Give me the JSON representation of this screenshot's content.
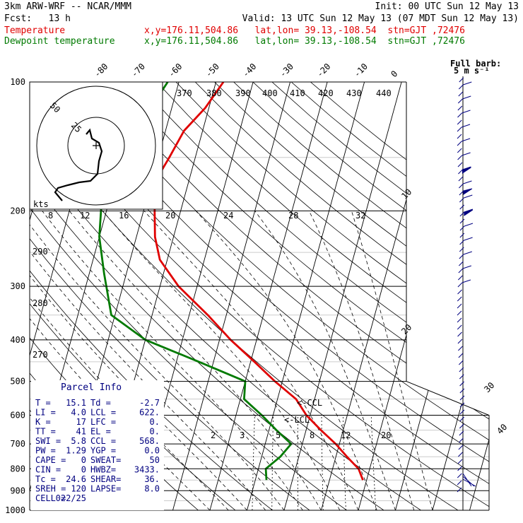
{
  "header": {
    "line1_left": "3km ARW-WRF -- NCAR/MMM",
    "line1_right": "Init: 00 UTC Sun 12 May 13",
    "line2_left": "Fcst:   13 h",
    "line2_right": "Valid: 13 UTC Sun 12 May 13 (07 MDT Sun 12 May 13)",
    "line3_label": "Temperature",
    "line3_info": "x,y=176.11,504.86   lat,lon= 39.13,-108.54  stn=GJT ,72476",
    "line4_label": "Dewpoint temperature",
    "line4_info": "x,y=176.11,504.86   lat,lon= 39.13,-108.54  stn=GJT ,72476"
  },
  "colors": {
    "temperature": "#e00000",
    "dewpoint": "#007a00",
    "wind": "#000080",
    "grid": "#000000"
  },
  "wind_panel": {
    "title": "Full barb:",
    "subtitle": "5 m s⁻¹"
  },
  "hodograph": {
    "unit": "kts",
    "ring_labels": [
      "25",
      "50"
    ]
  },
  "parcel_info": {
    "title": "Parcel Info",
    "rows": [
      {
        "l": "T  =",
        "lv": "15.1",
        "r": "Td =",
        "rv": "-2.7"
      },
      {
        "l": "LI =",
        "lv": "4.0",
        "r": "LCL =",
        "rv": "622."
      },
      {
        "l": "K  =",
        "lv": "17",
        "r": "LFC =",
        "rv": "0."
      },
      {
        "l": "TT =",
        "lv": "41",
        "r": "EL =",
        "rv": "0."
      },
      {
        "l": "SWI =",
        "lv": "5.8",
        "r": "CCL =",
        "rv": "568."
      },
      {
        "l": "PW =",
        "lv": "1.29",
        "r": "YGP =",
        "rv": "0.0"
      },
      {
        "l": "CAPE =",
        "lv": "0",
        "r": "SWEAT=",
        "rv": "50"
      },
      {
        "l": "CIN =",
        "lv": "0",
        "r": "HWBZ=",
        "rv": "3433."
      },
      {
        "l": "Tc =",
        "lv": "24.6",
        "r": "SHEAR=",
        "rv": "36."
      },
      {
        "l": "SREH =",
        "lv": "120",
        "r": "LAPSE=",
        "rv": "8.0"
      },
      {
        "l": "CELL =",
        "lv": "022/25",
        "r": "",
        "rv": ""
      }
    ]
  },
  "chart_data": {
    "type": "line",
    "subtype": "skew-T log-p",
    "title": "3km ARW-WRF -- NCAR/MMM",
    "ylabel": "",
    "xlabel": "",
    "pressure_ticks": [
      "100",
      "200",
      "300",
      "400",
      "500",
      "600",
      "700",
      "800",
      "900",
      "1000"
    ],
    "pressure_values": [
      100,
      200,
      300,
      400,
      500,
      600,
      700,
      800,
      900,
      1000
    ],
    "isotherm_labels": [
      "-80",
      "-70",
      "-60",
      "-50",
      "-40",
      "-30",
      "-20",
      "-10",
      "0",
      "10",
      "20",
      "30",
      "40"
    ],
    "isotherm_values": [
      -80,
      -70,
      -60,
      -50,
      -40,
      -30,
      -20,
      -10,
      0,
      10,
      20,
      30,
      40
    ],
    "theta_labels": [
      "370",
      "380",
      "390",
      "400",
      "410",
      "420",
      "430",
      "440"
    ],
    "mixing_ratio_labels_top": [
      "8",
      "12",
      "16",
      "20",
      "24",
      "28",
      "32"
    ],
    "mixing_ratio_labels_bottom": [
      "2",
      "3",
      "5",
      "8",
      "12",
      "20"
    ],
    "dry_adiabat_labels_left": [
      "290",
      "280",
      "270"
    ],
    "lcl_labels": [
      "<-CCL",
      "<-LCL"
    ],
    "legend": "top-left",
    "grid": true,
    "series": [
      {
        "name": "Temperature",
        "points": [
          [
            100,
            -48
          ],
          [
            115,
            -51
          ],
          [
            130,
            -55
          ],
          [
            150,
            -57
          ],
          [
            170,
            -59
          ],
          [
            200,
            -57
          ],
          [
            230,
            -55
          ],
          [
            260,
            -52
          ],
          [
            300,
            -45
          ],
          [
            350,
            -35
          ],
          [
            400,
            -27
          ],
          [
            450,
            -19
          ],
          [
            500,
            -12
          ],
          [
            550,
            -5
          ],
          [
            600,
            -1
          ],
          [
            650,
            4
          ],
          [
            700,
            9
          ],
          [
            750,
            13
          ],
          [
            800,
            17
          ],
          [
            850,
            19
          ]
        ]
      },
      {
        "name": "Dewpoint temperature",
        "points": [
          [
            100,
            -63
          ],
          [
            130,
            -68
          ],
          [
            160,
            -72
          ],
          [
            190,
            -72
          ],
          [
            230,
            -70
          ],
          [
            280,
            -66
          ],
          [
            350,
            -61
          ],
          [
            400,
            -50
          ],
          [
            450,
            -34
          ],
          [
            500,
            -20
          ],
          [
            550,
            -19
          ],
          [
            600,
            -13
          ],
          [
            650,
            -8
          ],
          [
            700,
            -3
          ],
          [
            750,
            -5
          ],
          [
            800,
            -8
          ],
          [
            850,
            -7
          ]
        ]
      }
    ]
  }
}
